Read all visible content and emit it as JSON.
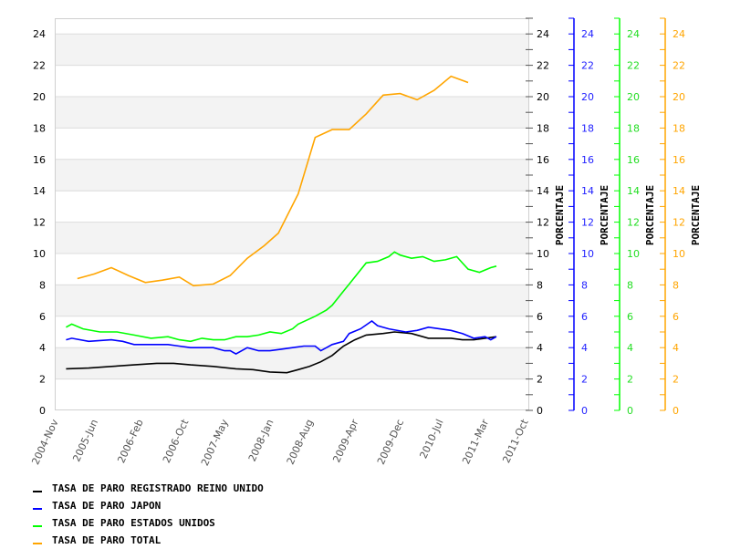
{
  "chart_data": {
    "type": "line",
    "title": "",
    "xlabel": "",
    "ylabel": "PORCENTAJE",
    "x_unit": "months since 2004-Nov",
    "xlim": [
      0,
      83
    ],
    "ylim": [
      0,
      25
    ],
    "grid": true,
    "legend_position": "bottom-left",
    "x_tick_labels": [
      {
        "m": 0,
        "label": "2004-Nov"
      },
      {
        "m": 7,
        "label": "2005-Jun"
      },
      {
        "m": 15,
        "label": "2006-Feb"
      },
      {
        "m": 23,
        "label": "2006-Oct"
      },
      {
        "m": 30,
        "label": "2007-May"
      },
      {
        "m": 38,
        "label": "2008-Jan"
      },
      {
        "m": 45,
        "label": "2008-Aug"
      },
      {
        "m": 53,
        "label": "2009-Apr"
      },
      {
        "m": 61,
        "label": "2009-Dec"
      },
      {
        "m": 68,
        "label": "2010-Jul"
      },
      {
        "m": 76,
        "label": "2011-Mar"
      },
      {
        "m": 83,
        "label": "2011-Oct"
      }
    ],
    "y_ticks": [
      0,
      2,
      4,
      6,
      8,
      10,
      12,
      14,
      16,
      18,
      20,
      22,
      24
    ],
    "axes": [
      {
        "label": "PORCENTAJE",
        "color": "#000000"
      },
      {
        "label": "PORCENTAJE",
        "color": "#0000ff"
      },
      {
        "label": "PORCENTAJE",
        "color": "#00ff00"
      },
      {
        "label": "PORCENTAJE",
        "color": "#ffa500"
      }
    ],
    "series": [
      {
        "name": "TASA DE PARO REGISTRADO REINO UNIDO",
        "color": "#000000",
        "x": [
          2,
          6,
          10,
          14,
          18,
          21,
          24,
          28,
          32,
          35,
          38,
          41,
          43,
          45,
          47,
          49,
          51,
          53,
          55,
          58,
          60,
          63,
          66,
          70,
          72,
          74,
          76,
          78
        ],
        "y": [
          2.65,
          2.7,
          2.8,
          2.9,
          3.0,
          3.0,
          2.9,
          2.8,
          2.65,
          2.6,
          2.45,
          2.4,
          2.6,
          2.8,
          3.1,
          3.5,
          4.1,
          4.5,
          4.8,
          4.9,
          5.0,
          4.9,
          4.6,
          4.6,
          4.5,
          4.5,
          4.6,
          4.7
        ]
      },
      {
        "name": "TASA DE PARO JAPON",
        "color": "#0000ff",
        "x": [
          2,
          3,
          6,
          10,
          12,
          14,
          17,
          20,
          22,
          24,
          28,
          30,
          31,
          32,
          34,
          36,
          38,
          40,
          42,
          44,
          46,
          47,
          48,
          49,
          51,
          52,
          54,
          56,
          57,
          59,
          62,
          64,
          66,
          68,
          70,
          72,
          74,
          76,
          77,
          78
        ],
        "y": [
          4.5,
          4.6,
          4.4,
          4.5,
          4.4,
          4.2,
          4.2,
          4.2,
          4.1,
          4.0,
          4.0,
          3.8,
          3.8,
          3.6,
          4.0,
          3.8,
          3.8,
          3.9,
          4.0,
          4.1,
          4.1,
          3.8,
          4.0,
          4.2,
          4.4,
          4.9,
          5.2,
          5.7,
          5.4,
          5.2,
          5.0,
          5.1,
          5.3,
          5.2,
          5.1,
          4.9,
          4.6,
          4.7,
          4.5,
          4.7
        ]
      },
      {
        "name": "TASA DE PARO ESTADOS UNIDOS",
        "color": "#00ff00",
        "x": [
          2,
          3,
          5,
          8,
          11,
          14,
          17,
          20,
          22,
          24,
          26,
          28,
          30,
          32,
          34,
          36,
          38,
          40,
          42,
          43,
          46,
          48,
          49,
          51,
          53,
          55,
          57,
          59,
          60,
          61,
          63,
          65,
          67,
          69,
          71,
          73,
          75,
          77,
          78
        ],
        "y": [
          5.3,
          5.5,
          5.2,
          5.0,
          5.0,
          4.8,
          4.6,
          4.7,
          4.5,
          4.4,
          4.6,
          4.5,
          4.5,
          4.7,
          4.7,
          4.8,
          5.0,
          4.9,
          5.2,
          5.5,
          6.0,
          6.4,
          6.7,
          7.6,
          8.5,
          9.4,
          9.5,
          9.8,
          10.1,
          9.9,
          9.7,
          9.8,
          9.5,
          9.6,
          9.8,
          9.0,
          8.8,
          9.1,
          9.2
        ]
      },
      {
        "name": "TASA DE PARO TOTAL",
        "color": "#ffa500",
        "x": [
          4,
          7,
          10,
          13,
          16,
          19,
          22,
          24.5,
          28,
          31,
          34,
          37,
          39.5,
          43,
          46,
          49,
          52,
          55,
          58,
          61,
          64,
          67,
          70,
          73
        ],
        "y": [
          8.4,
          8.7,
          9.1,
          8.6,
          8.15,
          8.3,
          8.5,
          7.95,
          8.05,
          8.6,
          9.7,
          10.5,
          11.3,
          13.8,
          17.4,
          17.9,
          17.9,
          18.9,
          20.1,
          20.2,
          19.8,
          20.4,
          21.3,
          20.9
        ]
      }
    ]
  }
}
